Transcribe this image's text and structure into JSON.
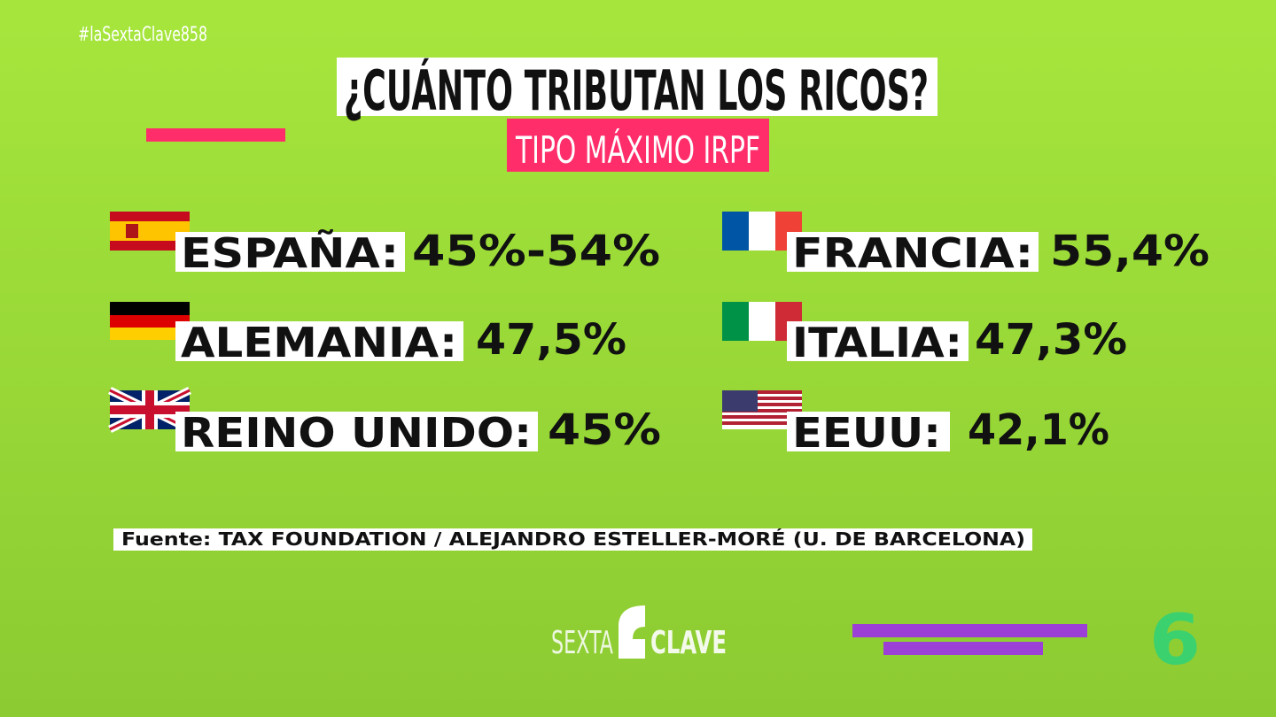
{
  "hashtag": "#laSextaClave858",
  "header": {
    "title": "¿CUÁNTO TRIBUTAN LOS RICOS?",
    "subtitle": "TIPO MÁXIMO IRPF"
  },
  "countries": [
    {
      "name": "ESPAÑA:",
      "rate": "45%-54%"
    },
    {
      "name": "ALEMANIA:",
      "rate": "47,5%"
    },
    {
      "name": "REINO UNIDO:",
      "rate": "45%"
    },
    {
      "name": "FRANCIA:",
      "rate": "55,4%"
    },
    {
      "name": "ITALIA:",
      "rate": "47,3%"
    },
    {
      "name": "EEUU:",
      "rate": "42,1%"
    }
  ],
  "source": "Fuente: TAX FOUNDATION /  ALEJANDRO ESTELLER-MORÉ (U. DE BARCELONA)",
  "logo": {
    "left": "SEXTA",
    "right": "CLAVE",
    "channel": "6"
  }
}
